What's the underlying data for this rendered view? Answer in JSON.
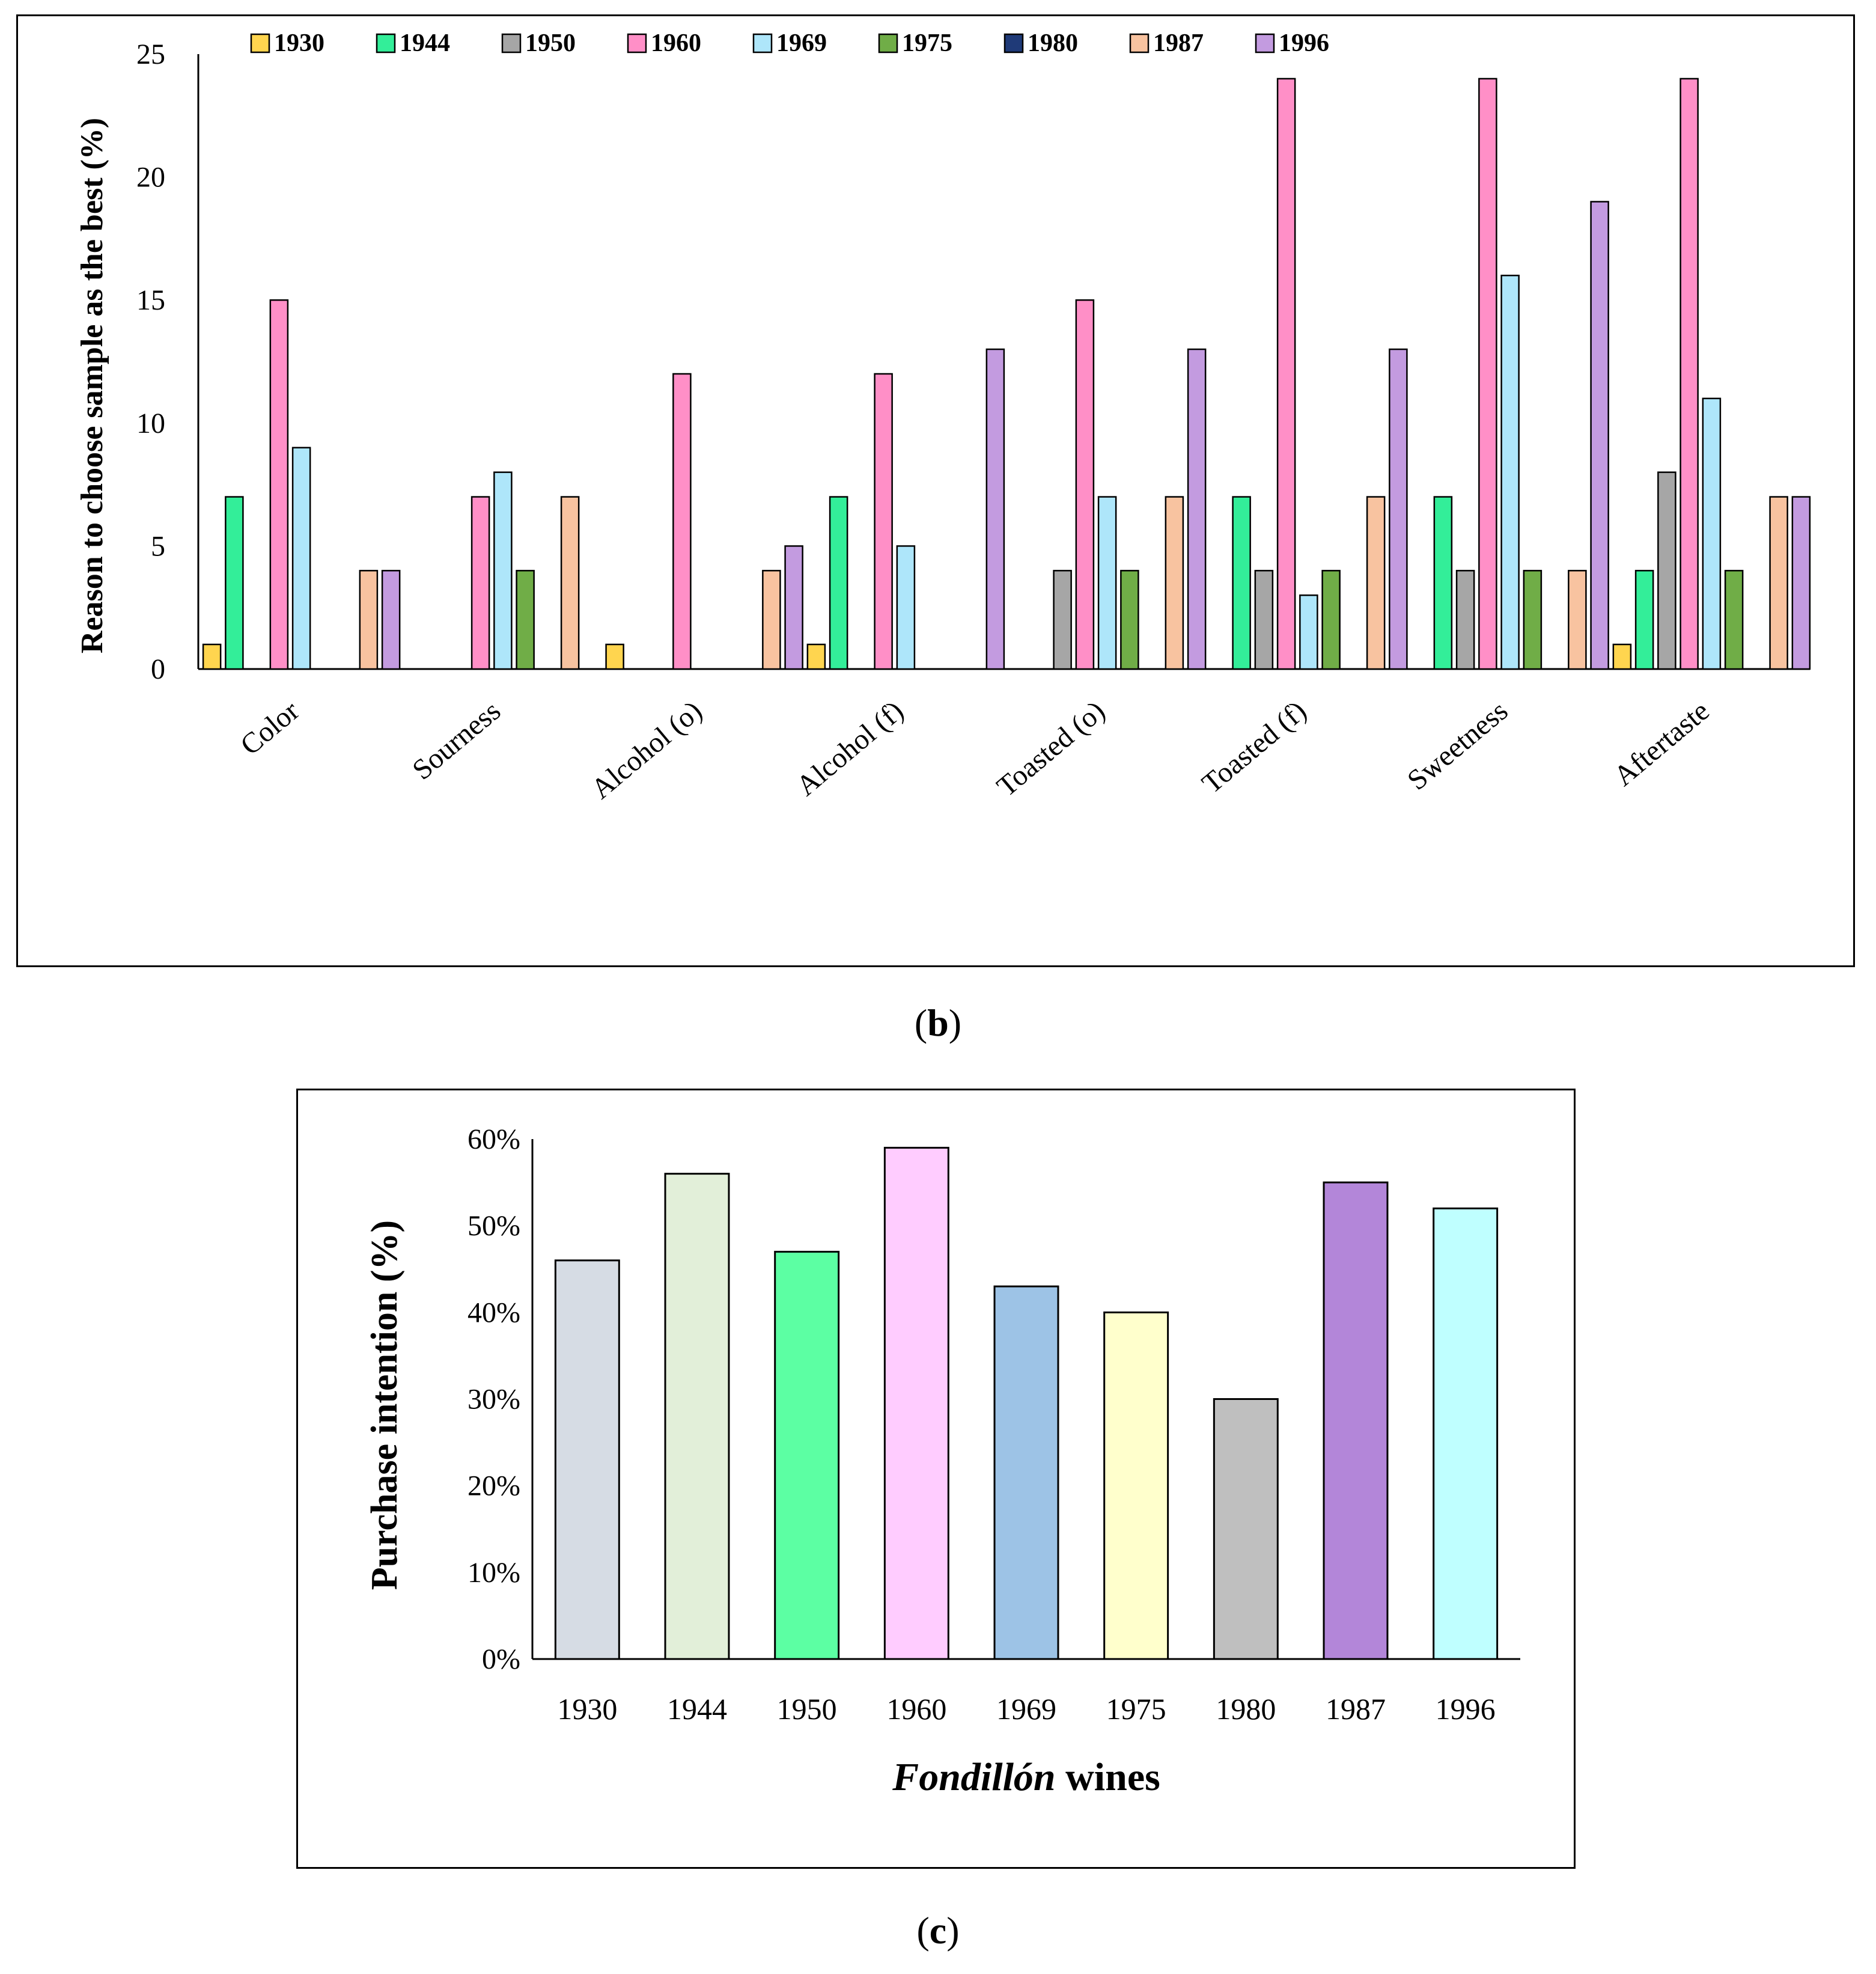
{
  "captions": {
    "b": "b",
    "c": "c"
  },
  "chart_data": [
    {
      "panel": "b",
      "type": "bar",
      "title": "",
      "xlabel": "",
      "ylabel": "Reason to choose sample as the best (%)",
      "ylim": [
        0,
        25
      ],
      "yticks": [
        "0",
        "5",
        "10",
        "15",
        "20",
        "25"
      ],
      "grid": false,
      "legend_position": "top",
      "categories": [
        "Color",
        "Sourness",
        "Alcohol (o)",
        "Alcohol (f)",
        "Toasted (o)",
        "Toasted (f)",
        "Sweetness",
        "Aftertaste"
      ],
      "series": [
        {
          "name": "1930",
          "color": "#FFD54F",
          "values": [
            1,
            0,
            1,
            1,
            0,
            0,
            0,
            1
          ]
        },
        {
          "name": "1944",
          "color": "#33EE99",
          "values": [
            7,
            0,
            0,
            7,
            0,
            7,
            7,
            4
          ]
        },
        {
          "name": "1950",
          "color": "#A6A6A6",
          "values": [
            0,
            0,
            0,
            0,
            4,
            4,
            4,
            8
          ]
        },
        {
          "name": "1960",
          "color": "#FF8FC7",
          "values": [
            15,
            7,
            12,
            12,
            15,
            24,
            24,
            24
          ]
        },
        {
          "name": "1969",
          "color": "#AEE6FA",
          "values": [
            9,
            8,
            0,
            5,
            7,
            3,
            16,
            11
          ]
        },
        {
          "name": "1975",
          "color": "#70AD47",
          "values": [
            0,
            4,
            0,
            0,
            4,
            4,
            4,
            4
          ]
        },
        {
          "name": "1980",
          "color": "#1F3A78",
          "values": [
            0,
            0,
            0,
            0,
            0,
            0,
            0,
            0
          ]
        },
        {
          "name": "1987",
          "color": "#F8C3A0",
          "values": [
            4,
            7,
            4,
            0,
            7,
            7,
            4,
            7
          ]
        },
        {
          "name": "1996",
          "color": "#C39BE0",
          "values": [
            4,
            0,
            5,
            13,
            13,
            13,
            19,
            7
          ]
        }
      ]
    },
    {
      "panel": "c",
      "type": "bar",
      "title": "",
      "xlabel_italic": "Fondillón",
      "xlabel_rest": " wines",
      "ylabel": "Purchase intention (%)",
      "ylim": [
        0,
        60
      ],
      "yticks": [
        "0%",
        "10%",
        "20%",
        "30%",
        "40%",
        "50%",
        "60%"
      ],
      "grid": false,
      "categories": [
        "1930",
        "1944",
        "1950",
        "1960",
        "1969",
        "1975",
        "1980",
        "1987",
        "1996"
      ],
      "values": [
        46,
        56,
        47,
        59,
        43,
        40,
        30,
        55,
        52
      ],
      "colors": [
        "#D6DCE4",
        "#E2EFD9",
        "#5CFFA3",
        "#FFCCFF",
        "#9DC3E6",
        "#FFFFCC",
        "#BFBFBF",
        "#B386D9",
        "#BFFFFF"
      ]
    }
  ]
}
